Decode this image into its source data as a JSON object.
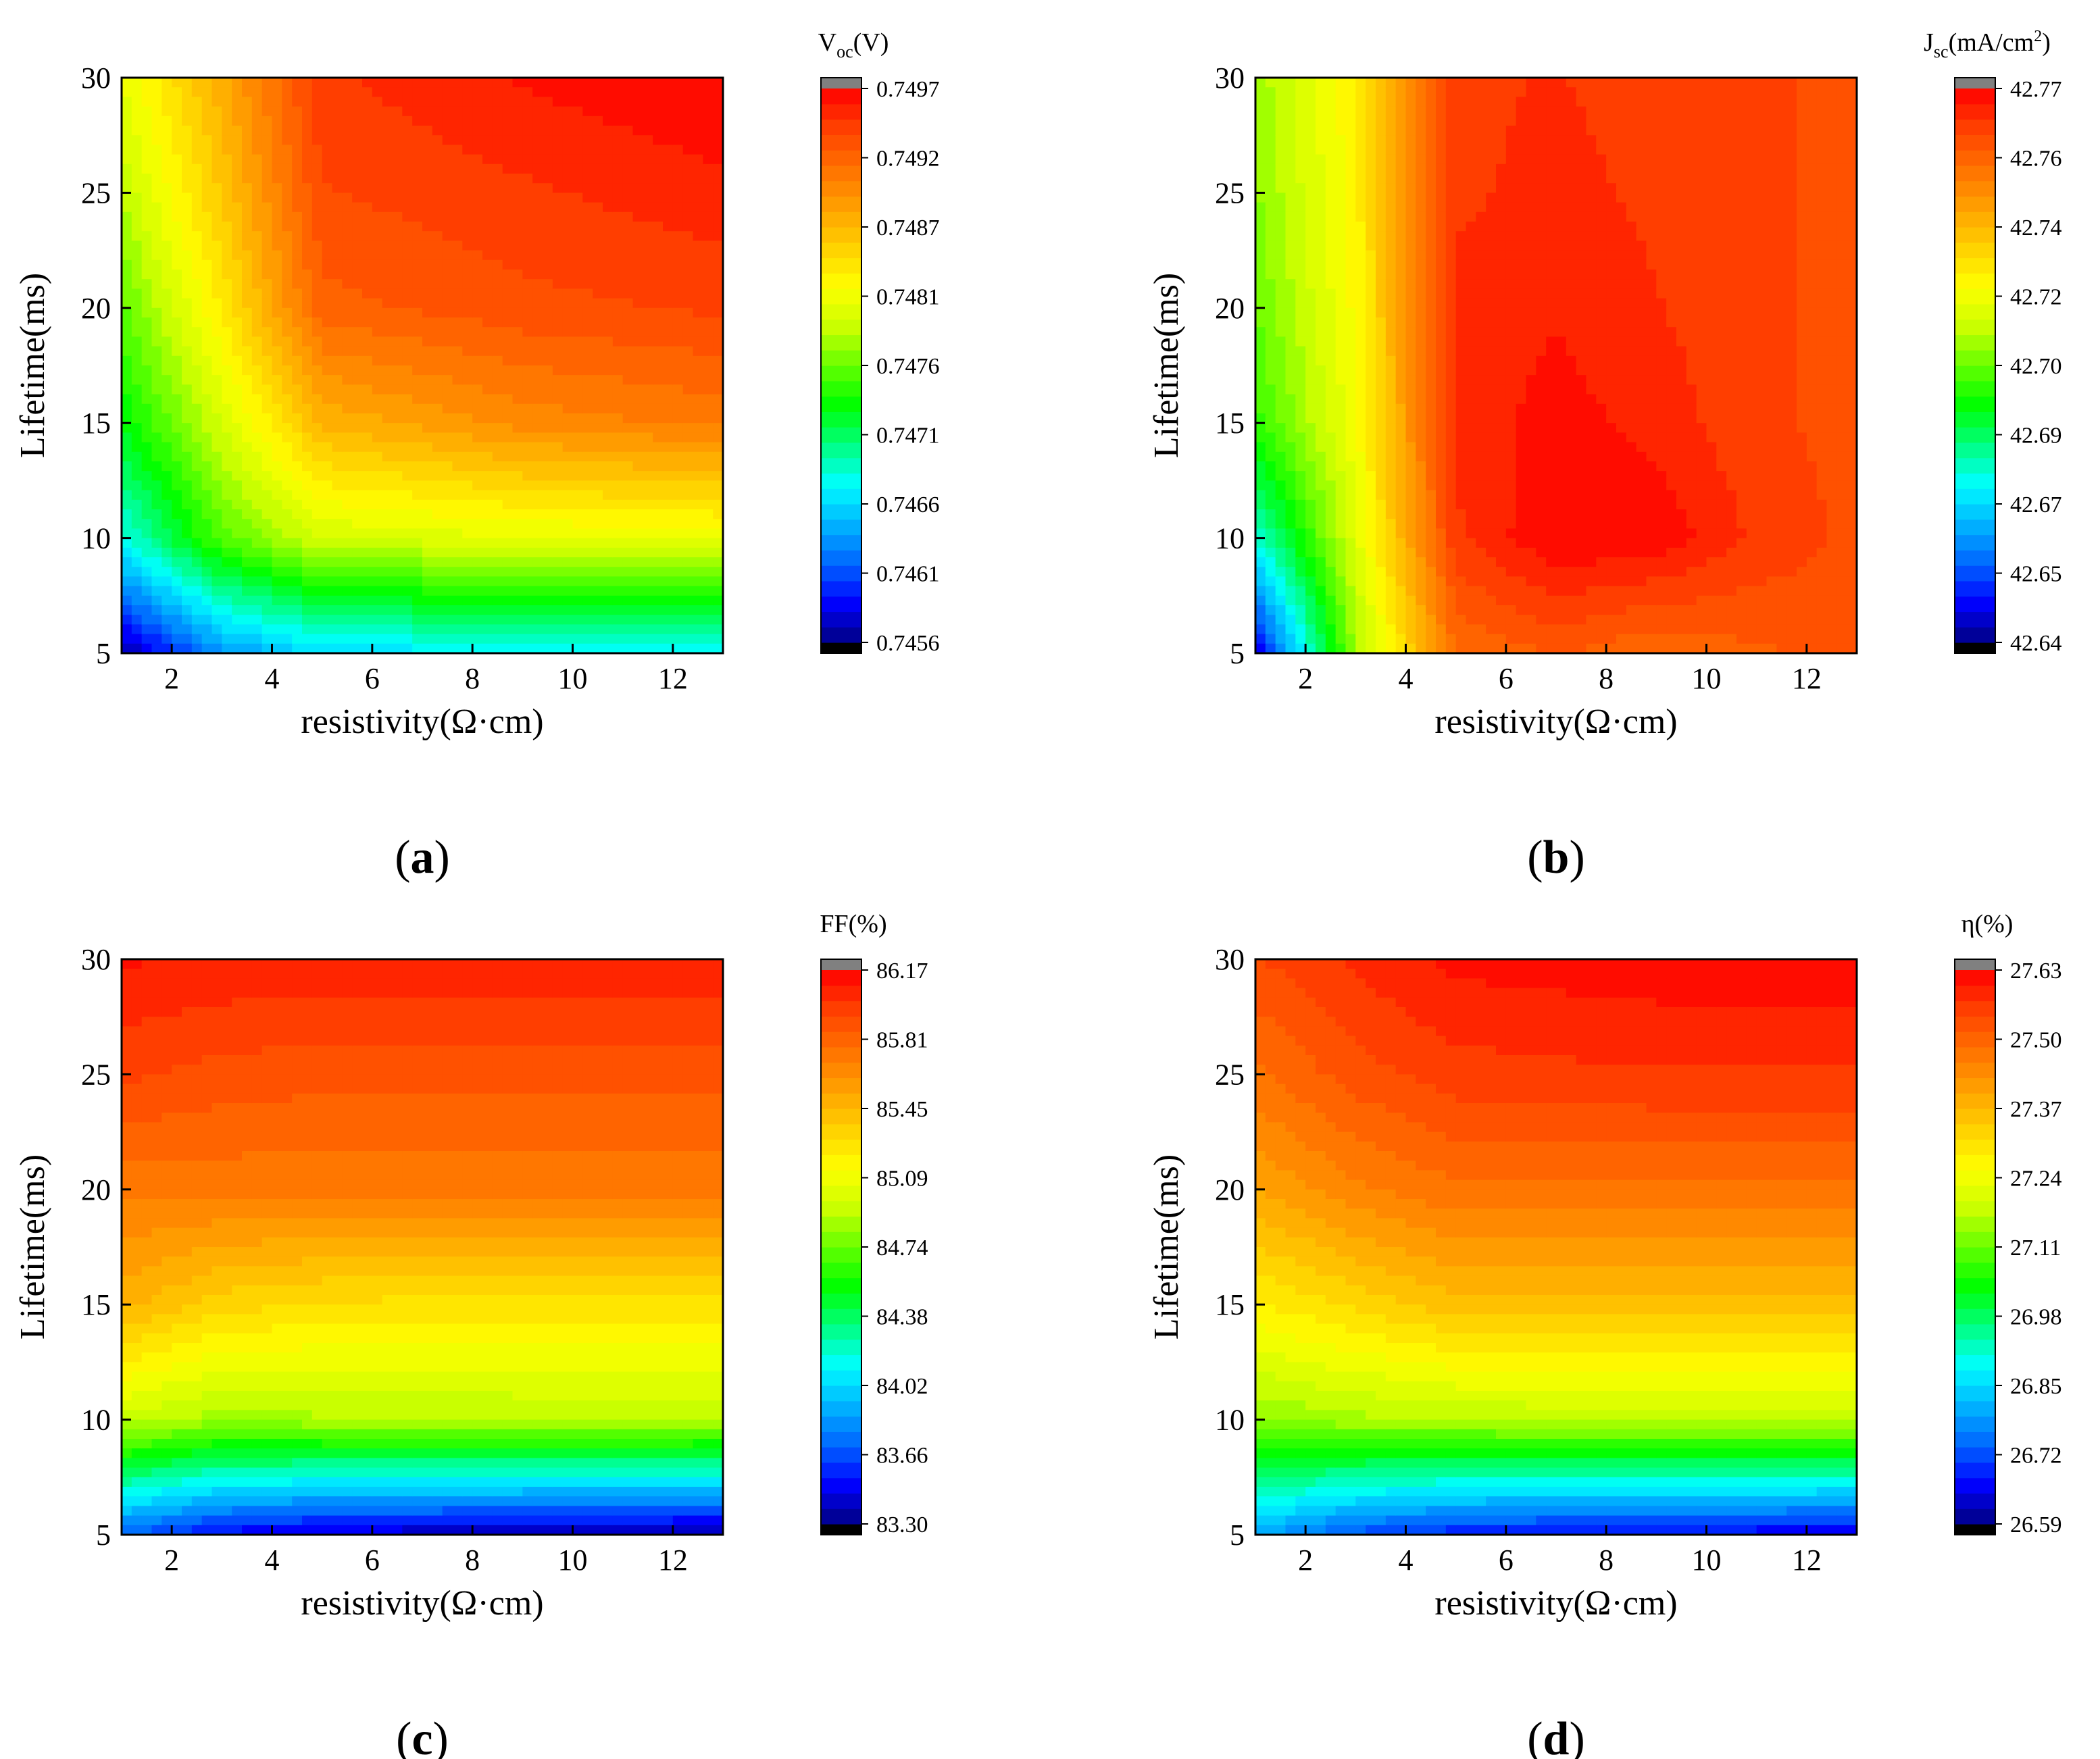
{
  "figure": {
    "panel_prefix": "(",
    "panel_suffix": ")"
  },
  "colors": {
    "palette": [
      "#000080",
      "#0000ff",
      "#0066ff",
      "#00b4ff",
      "#00ffff",
      "#00ff80",
      "#00ff00",
      "#66ff00",
      "#ccff00",
      "#ffff00",
      "#ffd000",
      "#ffa000",
      "#ff7000",
      "#ff4000",
      "#ff0000"
    ],
    "above_max": "#808080",
    "below_min": "#000000",
    "contour_line": "#444444"
  },
  "chart_data": [
    {
      "type": "contour",
      "id": "a",
      "panel_label": "a",
      "xlabel": "resistivity(Ω·cm)",
      "ylabel": "Lifetime(ms)",
      "xlim": [
        1,
        13
      ],
      "ylim": [
        5,
        30
      ],
      "xticks": [
        "2",
        "4",
        "6",
        "8",
        "10",
        "12"
      ],
      "yticks": [
        "5",
        "10",
        "15",
        "20",
        "25",
        "30"
      ],
      "colorbar": {
        "title_main": "V",
        "title_sub": "oc",
        "title_rest": "(V)",
        "title_sup": "",
        "title_tail": "",
        "ticks": [
          "0.7456",
          "0.7461",
          "0.7466",
          "0.7471",
          "0.7476",
          "0.7481",
          "0.7487",
          "0.7492",
          "0.7497"
        ],
        "min": 0.7456,
        "max": 0.7497,
        "green_frac": 0.58
      },
      "x": [
        1,
        3,
        5,
        9,
        13
      ],
      "y": [
        5,
        10,
        15,
        20,
        25,
        30
      ],
      "z": [
        [
          0.74565,
          0.74635,
          0.74665,
          0.74672,
          0.74675
        ],
        [
          0.74682,
          0.7476,
          0.748,
          0.7481,
          0.74815
        ],
        [
          0.74732,
          0.748,
          0.7487,
          0.74895,
          0.74905
        ],
        [
          0.74762,
          0.74835,
          0.7492,
          0.74932,
          0.74938
        ],
        [
          0.7479,
          0.74858,
          0.74935,
          0.74945,
          0.74955
        ],
        [
          0.7481,
          0.74875,
          0.74945,
          0.7496,
          0.7497
        ]
      ]
    },
    {
      "type": "contour",
      "id": "b",
      "panel_label": "b",
      "xlabel": "resistivity(Ω·cm)",
      "ylabel": "Lifetime(ms)",
      "xlim": [
        1,
        13
      ],
      "ylim": [
        5,
        30
      ],
      "xticks": [
        "2",
        "4",
        "6",
        "8",
        "10",
        "12"
      ],
      "yticks": [
        "5",
        "10",
        "15",
        "20",
        "25",
        "30"
      ],
      "colorbar": {
        "title_main": "J",
        "title_sub": "sc",
        "title_rest": "(mA/cm",
        "title_sup": "2",
        "title_tail": ")",
        "ticks": [
          "42.64",
          "42.65",
          "42.67",
          "42.69",
          "42.70",
          "42.72",
          "42.74",
          "42.76",
          "42.77"
        ],
        "min": 42.64,
        "max": 42.77,
        "green_frac": 0.58
      },
      "x": [
        1,
        3,
        5,
        7,
        9,
        11,
        13
      ],
      "y": [
        5,
        10,
        15,
        20,
        25,
        30
      ],
      "z": [
        [
          42.646,
          42.71,
          42.752,
          42.756,
          42.752,
          42.755,
          42.757
        ],
        [
          42.68,
          42.718,
          42.762,
          42.77,
          42.769,
          42.762,
          42.758
        ],
        [
          42.7,
          42.722,
          42.764,
          42.768,
          42.765,
          42.76,
          42.758
        ],
        [
          42.705,
          42.724,
          42.764,
          42.766,
          42.763,
          42.76,
          42.758
        ],
        [
          42.708,
          42.725,
          42.762,
          42.764,
          42.762,
          42.76,
          42.758
        ],
        [
          42.71,
          42.726,
          42.762,
          42.763,
          42.761,
          42.76,
          42.758
        ]
      ]
    },
    {
      "type": "contour",
      "id": "c",
      "panel_label": "c",
      "xlabel": "resistivity(Ω·cm)",
      "ylabel": "Lifetime(ms)",
      "xlim": [
        1,
        13
      ],
      "ylim": [
        5,
        30
      ],
      "xticks": [
        "2",
        "4",
        "6",
        "8",
        "10",
        "12"
      ],
      "yticks": [
        "5",
        "10",
        "15",
        "20",
        "25",
        "30"
      ],
      "colorbar": {
        "title_main": "FF(%)",
        "title_sub": "",
        "title_rest": "",
        "title_sup": "",
        "title_tail": "",
        "ticks": [
          "83.30",
          "83.66",
          "84.02",
          "84.38",
          "84.74",
          "85.09",
          "85.45",
          "85.81",
          "86.17"
        ],
        "min": 83.3,
        "max": 86.17,
        "green_frac": 0.58
      },
      "x": [
        1,
        3,
        5,
        9,
        13
      ],
      "y": [
        5,
        10,
        15,
        20,
        25,
        30
      ],
      "z": [
        [
          83.7,
          83.5,
          83.42,
          83.36,
          83.34
        ],
        [
          84.95,
          84.85,
          84.88,
          84.9,
          84.9
        ],
        [
          85.48,
          85.33,
          85.28,
          85.26,
          85.26
        ],
        [
          85.72,
          85.72,
          85.72,
          85.72,
          85.72
        ],
        [
          85.95,
          85.9,
          85.88,
          85.88,
          85.88
        ],
        [
          86.1,
          86.08,
          86.07,
          86.07,
          86.07
        ]
      ]
    },
    {
      "type": "contour",
      "id": "d",
      "panel_label": "d",
      "xlabel": "resistivity(Ω·cm)",
      "ylabel": "Lifetime(ms)",
      "xlim": [
        1,
        13
      ],
      "ylim": [
        5,
        30
      ],
      "xticks": [
        "2",
        "4",
        "6",
        "8",
        "10",
        "12"
      ],
      "yticks": [
        "5",
        "10",
        "15",
        "20",
        "25",
        "30"
      ],
      "colorbar": {
        "title_main": "η(%)",
        "title_sub": "",
        "title_rest": "",
        "title_sup": "",
        "title_tail": "",
        "ticks": [
          "26.59",
          "26.72",
          "26.85",
          "26.98",
          "27.11",
          "27.24",
          "27.37",
          "27.50",
          "27.63"
        ],
        "min": 26.59,
        "max": 27.63,
        "green_frac": 0.58
      },
      "x": [
        1,
        3,
        5,
        9,
        13
      ],
      "y": [
        5,
        10,
        15,
        20,
        25,
        30
      ],
      "z": [
        [
          26.8,
          26.72,
          26.68,
          26.66,
          26.65
        ],
        [
          27.14,
          27.16,
          27.17,
          27.18,
          27.18
        ],
        [
          27.28,
          27.32,
          27.36,
          27.36,
          27.36
        ],
        [
          27.4,
          27.45,
          27.48,
          27.48,
          27.48
        ],
        [
          27.48,
          27.53,
          27.56,
          27.57,
          27.57
        ],
        [
          27.54,
          27.58,
          27.61,
          27.62,
          27.62
        ]
      ]
    }
  ]
}
